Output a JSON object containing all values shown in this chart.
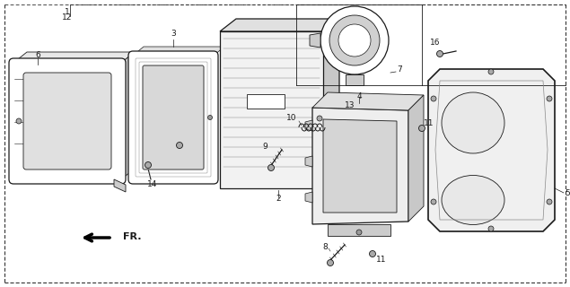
{
  "bg_color": "#ffffff",
  "line_color": "#1a1a1a",
  "gray_light": "#d8d8d8",
  "gray_med": "#c0c0c0",
  "gray_dark": "#a0a0a0"
}
